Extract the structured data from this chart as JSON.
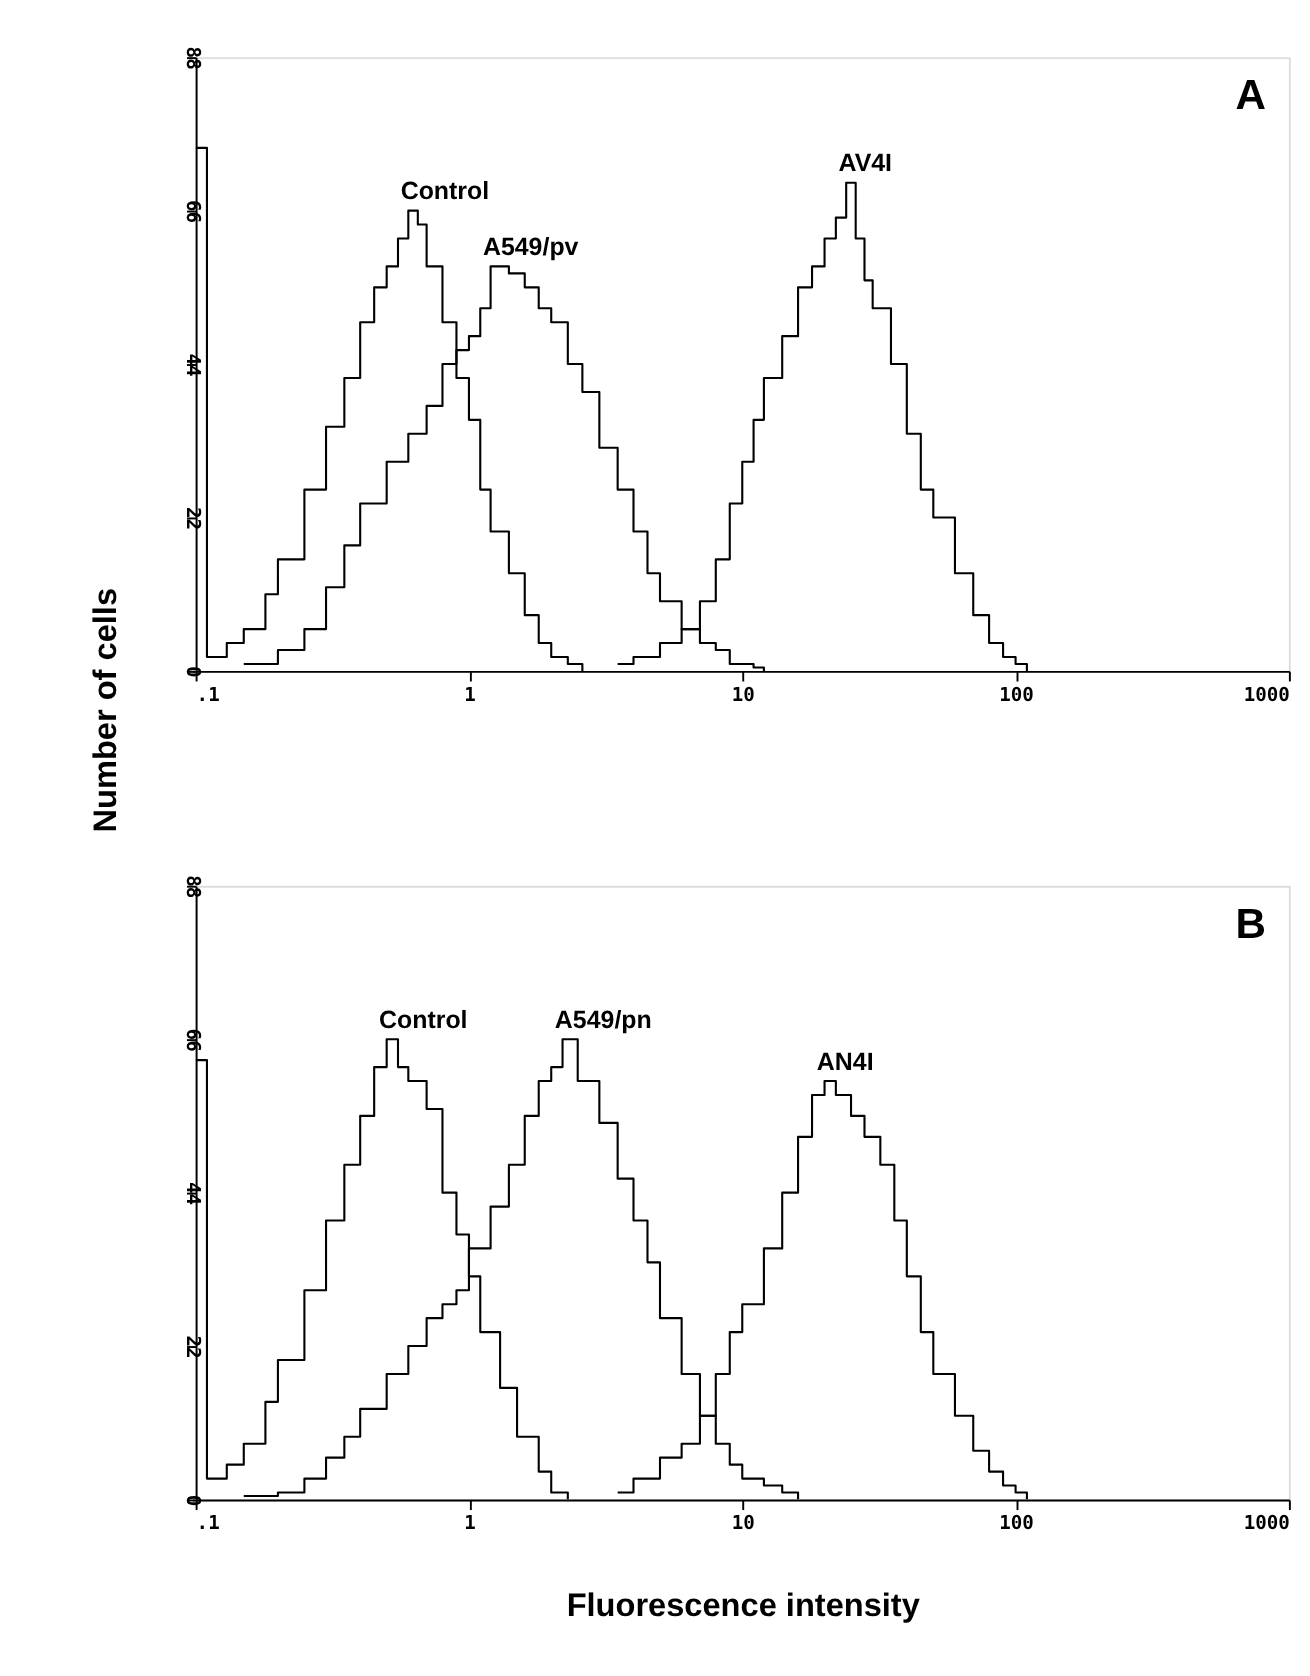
{
  "chart_data": [
    {
      "type": "step",
      "ylabel": "Number of cells",
      "log": "x",
      "grid": false,
      "legend": false,
      "xlim": [
        0.1,
        1000
      ],
      "ylim": [
        0,
        88
      ],
      "xticks": [
        {
          "value": 0.1,
          "label": ".1"
        },
        1,
        10,
        100,
        1000
      ],
      "yticks": [
        0,
        22,
        44,
        66,
        88
      ],
      "annotations": [
        "A"
      ],
      "series": [
        {
          "name": "Control",
          "color": "#000000",
          "x": [
            0.1,
            0.11,
            0.13,
            0.15,
            0.18,
            0.2,
            0.25,
            0.3,
            0.35,
            0.4,
            0.45,
            0.5,
            0.55,
            0.6,
            0.65,
            0.7,
            0.8,
            0.9,
            1.0,
            1.1,
            1.2,
            1.4,
            1.6,
            1.8,
            2.0,
            2.3,
            2.6
          ],
          "values": [
            75,
            2,
            4,
            6,
            11,
            16,
            26,
            35,
            42,
            50,
            55,
            58,
            62,
            66,
            64,
            58,
            50,
            42,
            36,
            26,
            20,
            14,
            8,
            4,
            2,
            1,
            0
          ]
        },
        {
          "name": "A549/pv",
          "color": "#000000",
          "x": [
            0.15,
            0.2,
            0.25,
            0.3,
            0.35,
            0.4,
            0.5,
            0.6,
            0.7,
            0.8,
            0.9,
            1.0,
            1.1,
            1.2,
            1.4,
            1.6,
            1.8,
            2.0,
            2.3,
            2.6,
            3.0,
            3.5,
            4.0,
            4.5,
            5.0,
            6,
            7,
            8,
            9,
            10,
            11,
            12
          ],
          "values": [
            1,
            3,
            6,
            12,
            18,
            24,
            30,
            34,
            38,
            44,
            46,
            48,
            52,
            58,
            57,
            55,
            52,
            50,
            44,
            40,
            32,
            26,
            20,
            14,
            10,
            6,
            4,
            3,
            1,
            1,
            0.5,
            0
          ]
        },
        {
          "name": "AV4I",
          "color": "#000000",
          "x": [
            3.5,
            4,
            5,
            6,
            7,
            8,
            9,
            10,
            11,
            12,
            14,
            16,
            18,
            20,
            22,
            24,
            26,
            28,
            30,
            35,
            40,
            45,
            50,
            60,
            70,
            80,
            90,
            100,
            110
          ],
          "values": [
            1,
            2,
            4,
            6,
            10,
            16,
            24,
            30,
            36,
            42,
            48,
            55,
            58,
            62,
            65,
            70,
            62,
            56,
            52,
            44,
            34,
            26,
            22,
            14,
            8,
            4,
            2,
            1,
            0
          ]
        }
      ]
    },
    {
      "type": "step",
      "xlabel": "Fluorescence intensity",
      "log": "x",
      "grid": false,
      "legend": false,
      "xlim": [
        0.1,
        1000
      ],
      "ylim": [
        0,
        88
      ],
      "xticks": [
        {
          "value": 0.1,
          "label": ".1"
        },
        1,
        10,
        100,
        1000
      ],
      "yticks": [
        0,
        22,
        44,
        66,
        88
      ],
      "annotations": [
        "B"
      ],
      "series": [
        {
          "name": "Control",
          "color": "#000000",
          "x": [
            0.1,
            0.11,
            0.13,
            0.15,
            0.18,
            0.2,
            0.25,
            0.3,
            0.35,
            0.4,
            0.45,
            0.5,
            0.55,
            0.6,
            0.7,
            0.8,
            0.9,
            1.0,
            1.1,
            1.3,
            1.5,
            1.8,
            2.0,
            2.3
          ],
          "values": [
            63,
            3,
            5,
            8,
            14,
            20,
            30,
            40,
            48,
            55,
            62,
            66,
            62,
            60,
            56,
            44,
            38,
            32,
            24,
            16,
            9,
            4,
            1,
            0
          ]
        },
        {
          "name": "A549/pn",
          "color": "#000000",
          "x": [
            0.15,
            0.2,
            0.25,
            0.3,
            0.35,
            0.4,
            0.5,
            0.6,
            0.7,
            0.8,
            0.9,
            1.0,
            1.2,
            1.4,
            1.6,
            1.8,
            2.0,
            2.2,
            2.5,
            3.0,
            3.5,
            4,
            4.5,
            5,
            6,
            7,
            8,
            9,
            10,
            12,
            14,
            16
          ],
          "values": [
            0.5,
            1,
            3,
            6,
            9,
            13,
            18,
            22,
            26,
            28,
            30,
            36,
            42,
            48,
            55,
            60,
            62,
            66,
            60,
            54,
            46,
            40,
            34,
            26,
            18,
            12,
            8,
            5,
            3,
            2,
            1,
            0
          ]
        },
        {
          "name": "AN4I",
          "color": "#000000",
          "x": [
            3.5,
            4,
            5,
            6,
            7,
            8,
            9,
            10,
            12,
            14,
            16,
            18,
            20,
            22,
            25,
            28,
            32,
            36,
            40,
            45,
            50,
            60,
            70,
            80,
            90,
            100,
            110
          ],
          "values": [
            1,
            3,
            6,
            8,
            12,
            18,
            24,
            28,
            36,
            44,
            52,
            58,
            60,
            58,
            55,
            52,
            48,
            40,
            32,
            24,
            18,
            12,
            7,
            4,
            2,
            1,
            0
          ]
        }
      ]
    }
  ]
}
